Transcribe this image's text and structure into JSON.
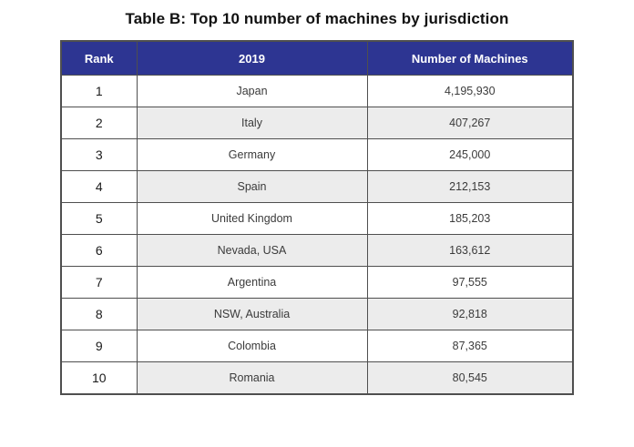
{
  "title": "Table B: Top 10 number of machines by jurisdiction",
  "colors": {
    "header_bg": "#2d3592",
    "header_text": "#ffffff",
    "row_alt_bg": "#ececec",
    "row_bg": "#ffffff",
    "border": "#4f4f4f"
  },
  "table": {
    "headers": [
      "Rank",
      "2019",
      "Number of Machines"
    ],
    "rows": [
      {
        "rank": "1",
        "jurisdiction": "Japan",
        "machines": "4,195,930"
      },
      {
        "rank": "2",
        "jurisdiction": "Italy",
        "machines": "407,267"
      },
      {
        "rank": "3",
        "jurisdiction": "Germany",
        "machines": "245,000"
      },
      {
        "rank": "4",
        "jurisdiction": "Spain",
        "machines": "212,153"
      },
      {
        "rank": "5",
        "jurisdiction": "United Kingdom",
        "machines": "185,203"
      },
      {
        "rank": "6",
        "jurisdiction": "Nevada, USA",
        "machines": "163,612"
      },
      {
        "rank": "7",
        "jurisdiction": "Argentina",
        "machines": "97,555"
      },
      {
        "rank": "8",
        "jurisdiction": "NSW, Australia",
        "machines": "92,818"
      },
      {
        "rank": "9",
        "jurisdiction": "Colombia",
        "machines": "87,365"
      },
      {
        "rank": "10",
        "jurisdiction": "Romania",
        "machines": "80,545"
      }
    ]
  },
  "chart_data": {
    "type": "table",
    "title": "Table B: Top 10 number of machines by jurisdiction",
    "columns": [
      "Rank",
      "2019",
      "Number of Machines"
    ],
    "categories": [
      "Japan",
      "Italy",
      "Germany",
      "Spain",
      "United Kingdom",
      "Nevada, USA",
      "Argentina",
      "NSW, Australia",
      "Colombia",
      "Romania"
    ],
    "values": [
      4195930,
      407267,
      245000,
      212153,
      185203,
      163612,
      97555,
      92818,
      87365,
      80545
    ]
  }
}
